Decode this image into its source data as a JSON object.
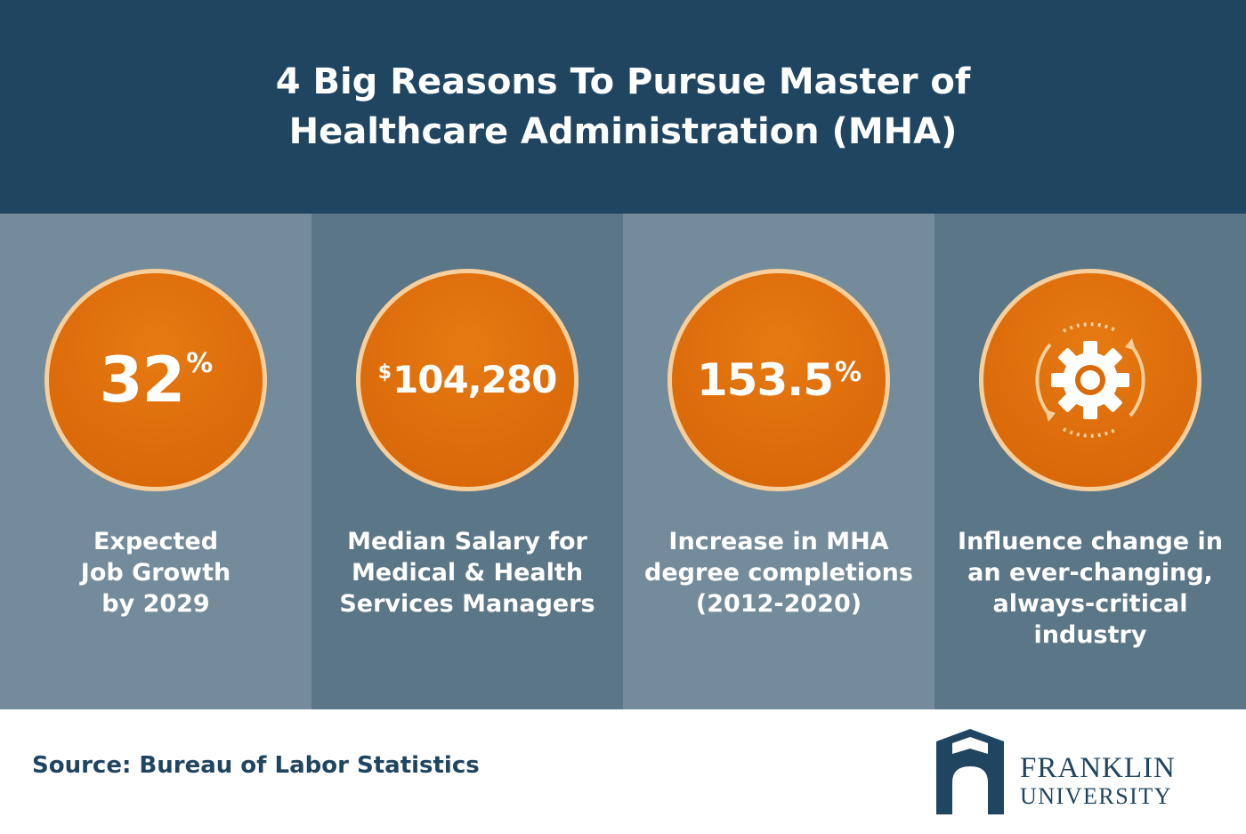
{
  "header": {
    "title_line1": "4 Big Reasons To Pursue Master of",
    "title_line2": "Healthcare Administration (MHA)"
  },
  "reasons": [
    {
      "value": "32",
      "suffix": "%",
      "caption": [
        "Expected",
        "Job Growth",
        "by 2029"
      ]
    },
    {
      "prefix": "$",
      "value": "104,280",
      "caption": [
        "Median Salary for",
        "Medical & Health",
        "Services Managers"
      ]
    },
    {
      "value": "153.5",
      "suffix": "%",
      "caption": [
        "Increase in MHA",
        "degree completions",
        "(2012-2020)"
      ]
    },
    {
      "icon": "gear-cycle-icon",
      "caption": [
        "Influence change in",
        "an ever-changing,",
        "always-critical",
        "industry"
      ]
    }
  ],
  "footer": {
    "source": "Source: Bureau of Labor Statistics",
    "logo_line1": "FRANKLIN",
    "logo_line2": "UNIVERSITY"
  },
  "colors": {
    "header_bg": "#1f4560",
    "panel_light": "#738b9a",
    "panel_dark": "#5b7687",
    "circle_orange": "#db6a0a",
    "circle_ring": "#f7cf9c",
    "brand_navy": "#1f4560"
  }
}
